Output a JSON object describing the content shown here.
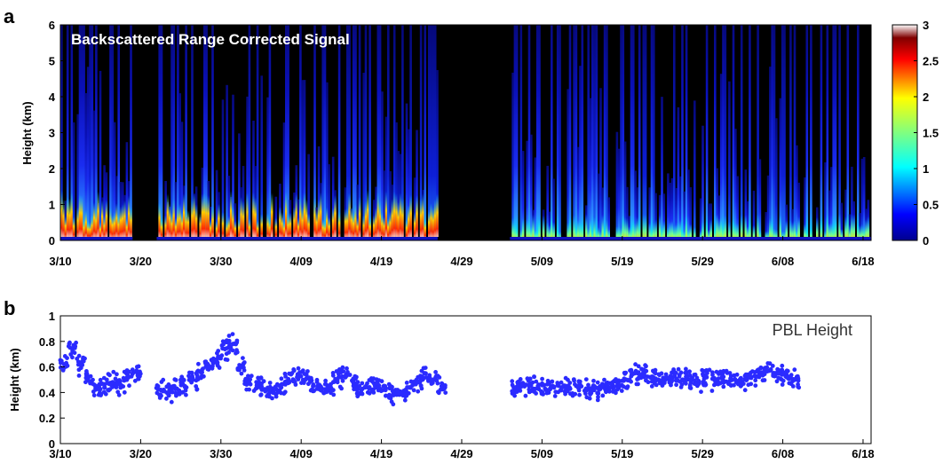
{
  "panel_a_label": "a",
  "panel_b_label": "b",
  "chart_data": [
    {
      "type": "heatmap",
      "title": "Backscattered Range Corrected Signal",
      "ylabel": "Height (km)",
      "x_tick_labels": [
        "3/10",
        "3/20",
        "3/30",
        "4/09",
        "4/19",
        "4/29",
        "5/09",
        "5/19",
        "5/29",
        "6/08",
        "6/18"
      ],
      "y_tick_labels": [
        "0",
        "1",
        "2",
        "3",
        "4",
        "5",
        "6"
      ],
      "xlim": [
        "3/10",
        "6/19"
      ],
      "ylim": [
        0,
        6
      ],
      "colorbar": {
        "range": [
          0,
          3
        ],
        "tick_labels": [
          "0",
          "0.5",
          "1",
          "1.5",
          "2",
          "2.5",
          "3"
        ]
      },
      "data_gaps": [
        [
          "3/19",
          "3/22"
        ],
        [
          "4/26",
          "5/05"
        ]
      ],
      "colors": {
        "background": "#000000",
        "low": "#00008f",
        "mid": "#00ffff",
        "high": "#ff0000",
        "max": "#ffffff"
      }
    },
    {
      "type": "scatter",
      "legend": "PBL Height",
      "legend_placement": "top-right",
      "ylabel": "Height (km)",
      "x_tick_labels": [
        "3/10",
        "3/20",
        "3/30",
        "4/09",
        "4/19",
        "4/29",
        "5/09",
        "5/19",
        "5/29",
        "6/08",
        "6/18"
      ],
      "y_tick_labels": [
        "0",
        "0.2",
        "0.4",
        "0.6",
        "0.8",
        "1"
      ],
      "xlim": [
        "3/10",
        "6/19"
      ],
      "ylim": [
        0,
        1
      ],
      "marker_color": "#2b2bff",
      "x": [
        "3/10",
        "3/11",
        "3/12",
        "3/13",
        "3/14",
        "3/15",
        "3/16",
        "3/17",
        "3/18",
        "3/19",
        "3/22",
        "3/23",
        "3/24",
        "3/25",
        "3/26",
        "3/27",
        "3/28",
        "3/29",
        "3/30",
        "3/31",
        "4/01",
        "4/02",
        "4/03",
        "4/04",
        "4/05",
        "4/06",
        "4/07",
        "4/08",
        "4/09",
        "4/10",
        "4/11",
        "4/12",
        "4/13",
        "4/14",
        "4/15",
        "4/16",
        "4/17",
        "4/18",
        "4/19",
        "4/20",
        "4/21",
        "4/22",
        "4/23",
        "4/24",
        "4/25",
        "4/26",
        "5/05",
        "5/06",
        "5/07",
        "5/08",
        "5/09",
        "5/10",
        "5/11",
        "5/12",
        "5/13",
        "5/14",
        "5/15",
        "5/16",
        "5/17",
        "5/18",
        "5/19",
        "5/20",
        "5/21",
        "5/22",
        "5/23",
        "5/24",
        "5/25",
        "5/26",
        "5/27",
        "5/28",
        "5/29",
        "5/30",
        "5/31",
        "6/01",
        "6/02",
        "6/03",
        "6/04",
        "6/05",
        "6/06",
        "6/07",
        "6/08",
        "6/09"
      ],
      "y": [
        0.62,
        0.74,
        0.62,
        0.52,
        0.45,
        0.44,
        0.48,
        0.46,
        0.52,
        0.56,
        0.42,
        0.4,
        0.43,
        0.45,
        0.5,
        0.56,
        0.6,
        0.66,
        0.74,
        0.78,
        0.6,
        0.48,
        0.46,
        0.42,
        0.4,
        0.44,
        0.48,
        0.52,
        0.5,
        0.45,
        0.42,
        0.44,
        0.5,
        0.52,
        0.48,
        0.42,
        0.44,
        0.47,
        0.42,
        0.38,
        0.4,
        0.44,
        0.48,
        0.55,
        0.5,
        0.45,
        0.44,
        0.45,
        0.47,
        0.45,
        0.42,
        0.44,
        0.44,
        0.43,
        0.44,
        0.43,
        0.42,
        0.45,
        0.44,
        0.47,
        0.5,
        0.55,
        0.54,
        0.52,
        0.5,
        0.52,
        0.53,
        0.5,
        0.5,
        0.49,
        0.52,
        0.5,
        0.52,
        0.51,
        0.49,
        0.5,
        0.53,
        0.55,
        0.58,
        0.55,
        0.52,
        0.5
      ]
    }
  ]
}
